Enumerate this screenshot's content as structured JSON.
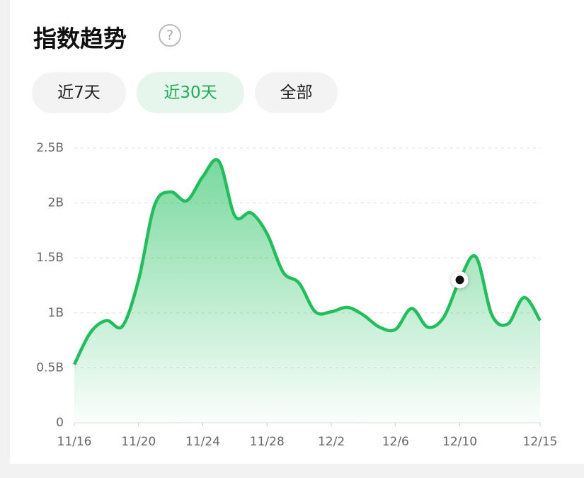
{
  "header": {
    "title": "指数趋势",
    "help": "?"
  },
  "tabs": [
    "近7天",
    "近30天",
    "全部"
  ],
  "active_tab": 1,
  "chart_data": {
    "type": "line",
    "categories": [
      "11/16",
      null,
      null,
      null,
      "11/20",
      null,
      null,
      null,
      "11/24",
      null,
      null,
      null,
      "11/28",
      null,
      null,
      null,
      "12/2",
      null,
      null,
      null,
      "12/6",
      null,
      null,
      null,
      "12/10",
      null,
      null,
      null,
      null,
      "12/15"
    ],
    "values": [
      0.53,
      0.82,
      0.93,
      0.88,
      1.3,
      1.98,
      2.1,
      2.02,
      2.24,
      2.38,
      1.88,
      1.91,
      1.72,
      1.37,
      1.27,
      1.01,
      1.01,
      1.05,
      0.98,
      0.87,
      0.85,
      1.04,
      0.87,
      0.96,
      1.3,
      1.51,
      0.98,
      0.9,
      1.14,
      0.93
    ],
    "color": "#1fbf5c",
    "ylim": [
      0,
      2.5
    ],
    "yticks": [
      0,
      {
        "value": 0.5,
        "label": "0.5B"
      },
      {
        "value": 1,
        "label": "1B"
      },
      {
        "value": 1.5,
        "label": "1.5B"
      },
      {
        "value": 2,
        "label": "2B"
      },
      {
        "value": 2.5,
        "label": "2.5B"
      }
    ],
    "grid": true,
    "highlight_index": 24
  }
}
